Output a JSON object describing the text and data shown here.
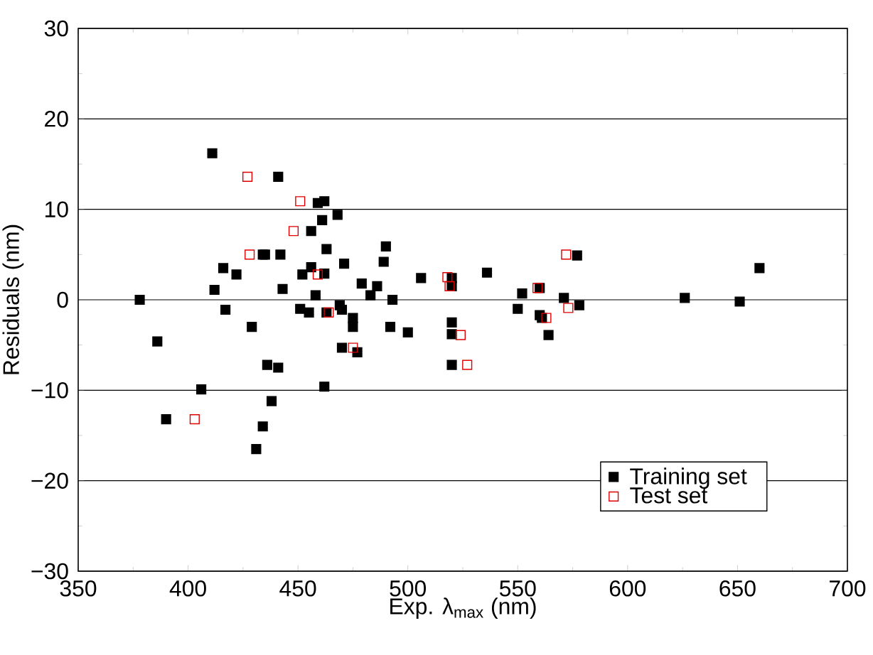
{
  "chart_data": {
    "type": "scatter",
    "xlabel": "Exp. λ$_{max}$ (nm)",
    "ylabel": "Residuals (nm)",
    "xlim": [
      350,
      700
    ],
    "xticks": [
      350,
      400,
      450,
      500,
      550,
      600,
      650,
      700
    ],
    "ylim": [
      -30,
      30
    ],
    "yticks": [
      {
        "value": -30,
        "label": "−30"
      },
      {
        "value": -20,
        "label": "−20"
      },
      {
        "value": -10,
        "label": "−10"
      },
      0,
      10,
      20,
      30
    ],
    "grid": "y",
    "legend": "bottom right",
    "marker": "square",
    "series": [
      {
        "name": "Training set",
        "color": "#000000",
        "x": [
          378,
          386,
          390,
          406,
          411,
          412,
          416,
          417,
          422,
          429,
          431,
          434,
          434,
          435,
          436,
          438,
          441,
          441,
          442,
          443,
          451,
          452,
          455,
          456,
          456,
          458,
          459,
          461,
          462,
          462,
          462,
          463,
          463,
          468,
          469,
          470,
          470,
          471,
          475,
          475,
          477,
          479,
          483,
          486,
          489,
          490,
          492,
          493,
          500,
          506,
          520,
          520,
          520,
          520,
          520,
          536,
          550,
          552,
          560,
          560,
          561,
          564,
          571,
          577,
          578,
          626,
          651,
          660
        ],
        "values": [
          0,
          -4.6,
          -13.2,
          -9.9,
          16.2,
          1.1,
          3.5,
          -1.1,
          2.8,
          -3.0,
          -16.5,
          -14.0,
          5.0,
          5.0,
          -7.2,
          -11.2,
          13.6,
          -7.5,
          5.0,
          1.2,
          -1.0,
          2.8,
          -1.4,
          7.6,
          3.6,
          0.5,
          10.7,
          8.8,
          10.9,
          -9.6,
          2.9,
          5.6,
          -1.4,
          9.4,
          -0.6,
          -5.3,
          -1.1,
          4.0,
          -2.0,
          -3.0,
          -5.8,
          1.8,
          0.5,
          1.5,
          4.2,
          5.9,
          -3.0,
          0,
          -3.6,
          2.4,
          -2.5,
          -3.8,
          -7.2,
          1.5,
          2.4,
          3.0,
          -1.0,
          0.7,
          1.3,
          -1.7,
          -2.0,
          -3.9,
          0.2,
          4.9,
          -0.6,
          0.2,
          -0.2,
          3.5
        ]
      },
      {
        "name": "Test set",
        "color": "#e00000",
        "x": [
          403,
          427,
          428,
          448,
          451,
          459,
          464,
          475,
          518,
          519,
          524,
          527,
          559,
          563,
          572,
          573
        ],
        "values": [
          -13.2,
          13.6,
          5.0,
          7.6,
          10.9,
          2.8,
          -1.4,
          -5.3,
          2.5,
          1.5,
          -3.9,
          -7.2,
          1.3,
          -2.0,
          5.0,
          -0.9
        ]
      }
    ]
  }
}
